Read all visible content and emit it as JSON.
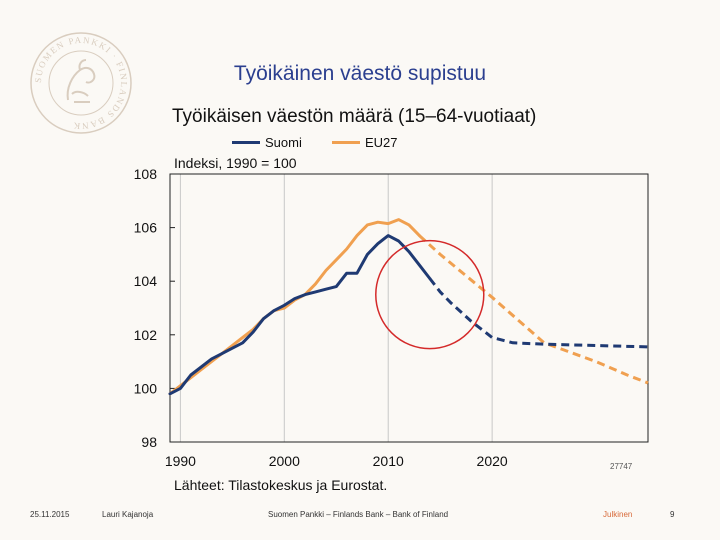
{
  "slide": {
    "title": "Työikäinen väestö supistuu",
    "logo_text": "SUOMEN PANKKI · FINLANDS BANK",
    "source": "Lähteet: Tilastokeskus ja Eurostat.",
    "chart_id": "27747",
    "footer": {
      "date": "25.11.2015",
      "author": "Lauri Kajanoja",
      "organization": "Suomen Pankki – Finlands Bank – Bank of Finland",
      "classification": "Julkinen",
      "page": "9"
    }
  },
  "colors": {
    "title": "#2b3f8f",
    "suomi": "#1f3a73",
    "eu27": "#f0a050",
    "highlight_circle": "#d42a2a",
    "grid": "#c8c8c8"
  },
  "chart_data": {
    "type": "line",
    "title": "Työikäisen väestön määrä (15–64-vuotiaat)",
    "ylabel": "Indeksi, 1990 = 100",
    "xlabel": "",
    "xlim": [
      1989,
      2035
    ],
    "ylim": [
      98,
      108
    ],
    "xticks": [
      1990,
      2000,
      2010,
      2020
    ],
    "yticks": [
      98,
      100,
      102,
      104,
      106,
      108
    ],
    "grid": "vertical",
    "legend": "top-left",
    "series": [
      {
        "name": "Suomi",
        "color_key": "suomi",
        "actual": {
          "x": [
            1989,
            1990,
            1991,
            1992,
            1993,
            1994,
            1995,
            1996,
            1997,
            1998,
            1999,
            2000,
            2001,
            2002,
            2003,
            2004,
            2005,
            2006,
            2007,
            2008,
            2009,
            2010,
            2011,
            2012,
            2013,
            2014
          ],
          "y": [
            99.8,
            100.0,
            100.5,
            100.8,
            101.1,
            101.3,
            101.5,
            101.7,
            102.1,
            102.6,
            102.9,
            103.1,
            103.35,
            103.5,
            103.6,
            103.7,
            103.8,
            104.3,
            104.3,
            105.0,
            105.4,
            105.7,
            105.5,
            105.1,
            104.6,
            104.1
          ]
        },
        "projection": {
          "x": [
            2014,
            2015,
            2016,
            2017,
            2018,
            2019,
            2020,
            2022,
            2025,
            2030,
            2035
          ],
          "y": [
            104.1,
            103.6,
            103.2,
            102.85,
            102.5,
            102.2,
            101.9,
            101.7,
            101.65,
            101.6,
            101.55
          ]
        }
      },
      {
        "name": "EU27",
        "color_key": "eu27",
        "actual": {
          "x": [
            1989,
            1990,
            1991,
            1992,
            1993,
            1994,
            1995,
            1996,
            1997,
            1998,
            1999,
            2000,
            2001,
            2002,
            2003,
            2004,
            2005,
            2006,
            2007,
            2008,
            2009,
            2010,
            2011,
            2012,
            2013
          ],
          "y": [
            99.8,
            100.1,
            100.4,
            100.7,
            101.0,
            101.3,
            101.6,
            101.9,
            102.2,
            102.6,
            102.9,
            103.0,
            103.3,
            103.5,
            103.9,
            104.4,
            104.8,
            105.2,
            105.7,
            106.1,
            106.2,
            106.15,
            106.3,
            106.1,
            105.7
          ]
        },
        "projection": {
          "x": [
            2013,
            2015,
            2020,
            2025,
            2030,
            2033,
            2035
          ],
          "y": [
            105.7,
            105.0,
            103.4,
            101.7,
            101.0,
            100.5,
            100.2
          ]
        }
      }
    ],
    "annotations": [
      {
        "type": "circle",
        "x": 2014,
        "y": 103.5,
        "label": "highlight-transition-to-projection"
      }
    ]
  }
}
